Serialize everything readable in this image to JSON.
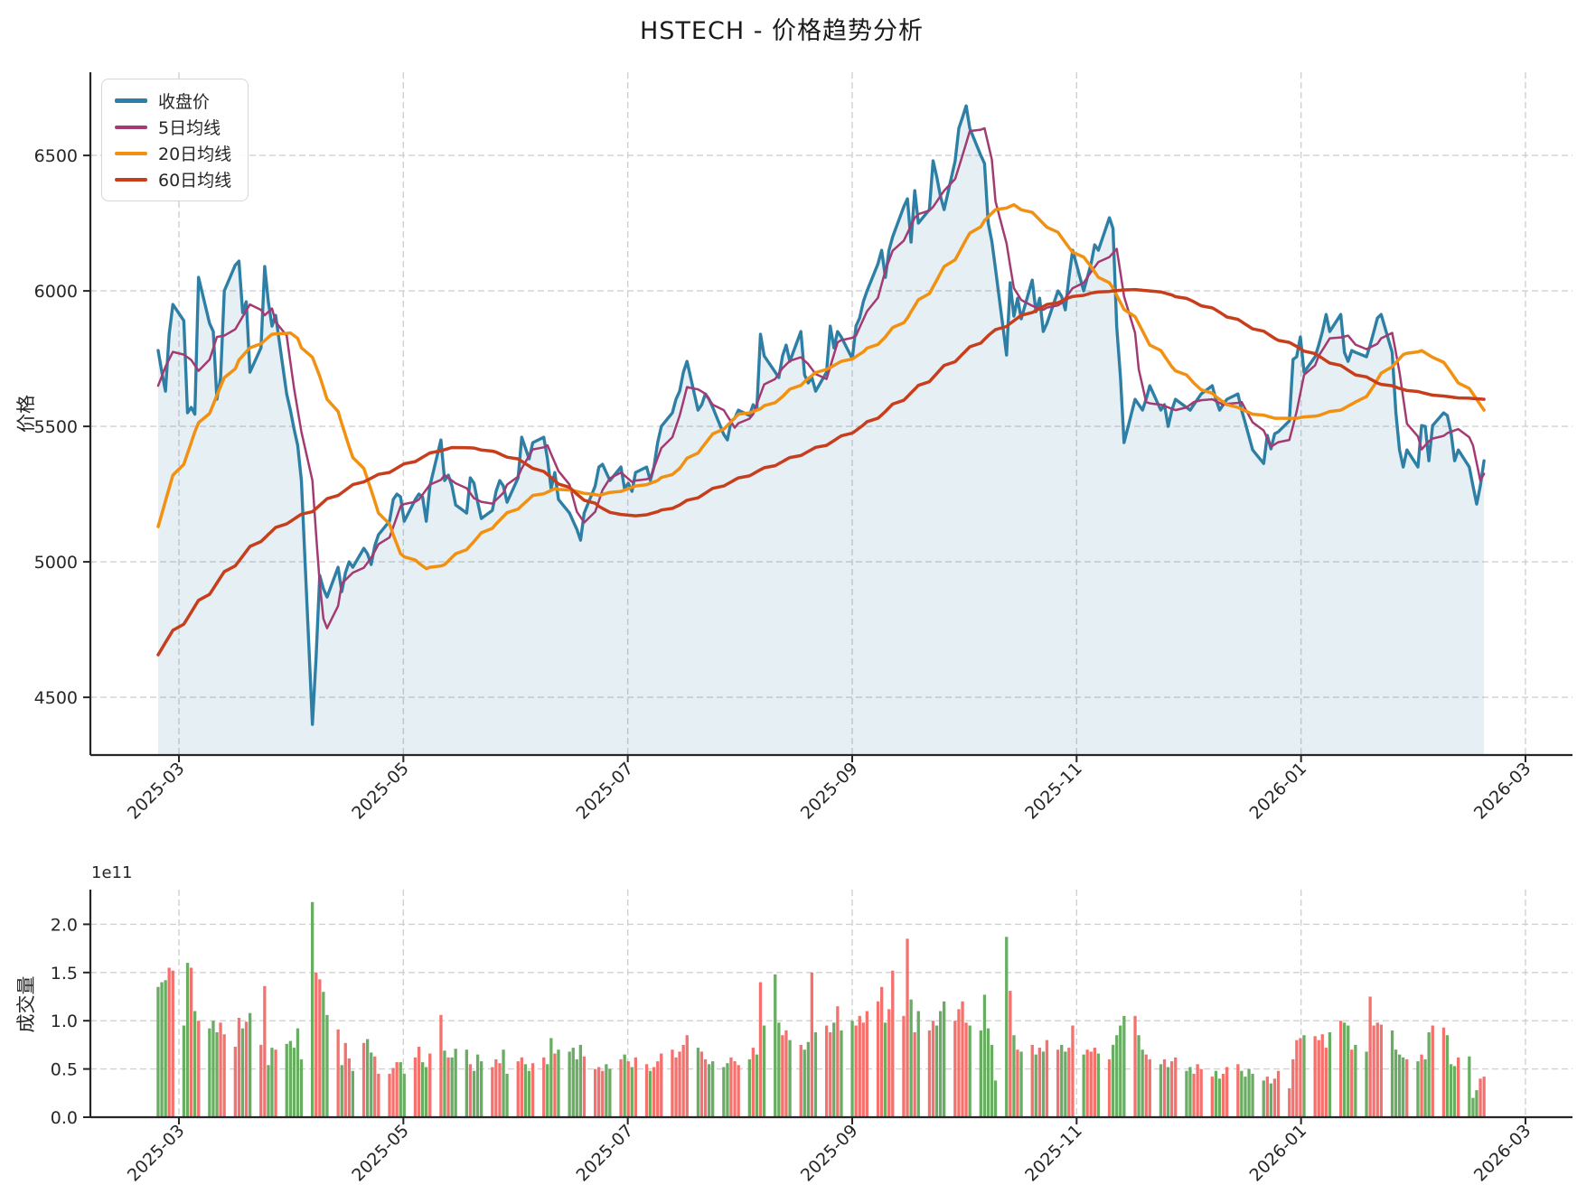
{
  "title": "HSTECH - 价格趋势分析",
  "legend": {
    "items": [
      {
        "label": "收盘价",
        "color": "#2e7fa5",
        "thickness": 5
      },
      {
        "label": "5日均线",
        "color": "#a23b72",
        "thickness": 4
      },
      {
        "label": "20日均线",
        "color": "#f29111",
        "thickness": 4
      },
      {
        "label": "60日均线",
        "color": "#c73e1d",
        "thickness": 4
      }
    ]
  },
  "chart_data": {
    "type": "line+bar",
    "title": "HSTECH - 价格趋势分析",
    "x_axis": {
      "tick_labels": [
        "2025-03",
        "2025-05",
        "2025-07",
        "2025-09",
        "2025-11",
        "2026-01",
        "2026-03"
      ],
      "start_date": "2025-02-24",
      "trading_days": 260
    },
    "price_panel": {
      "ylabel": "价格",
      "ytick_labels": [
        "4500",
        "5000",
        "5500",
        "6000",
        "6500"
      ],
      "ytick_values": [
        4500,
        5000,
        5500,
        6000,
        6500
      ],
      "ylim": [
        4287,
        6807
      ],
      "grid": true,
      "legend_position": "upper-left"
    },
    "volume_panel": {
      "ylabel": "成交量",
      "offset_text": "1e11",
      "ytick_labels": [
        "0.0",
        "0.5",
        "1.0",
        "1.5",
        "2.0"
      ],
      "ytick_values": [
        0,
        50,
        100,
        150,
        200
      ],
      "ylim_1e9": [
        0,
        236
      ],
      "grid": true
    },
    "series_names": {
      "close": "收盘价",
      "ma5": "5日均线",
      "ma20": "20日均线",
      "ma60": "60日均线"
    },
    "colors": {
      "close": "#2e7fa5",
      "close_fill": "#2e7fa5",
      "close_fill_opacity": 0.12,
      "ma5": "#a23b72",
      "ma20": "#f29111",
      "ma60": "#c73e1d",
      "volume_up": "#f4716e",
      "volume_down": "#68ad62",
      "grid": "#cccccc",
      "spine": "#262626",
      "tick_label": "#262626"
    },
    "close": [
      5780,
      5700,
      5630,
      5840,
      5950,
      5890,
      5550,
      5570,
      5545,
      6050,
      5880,
      5850,
      5600,
      5680,
      6000,
      6095,
      6110,
      5920,
      5960,
      5700,
      5790,
      6090,
      5960,
      5870,
      5910,
      5620,
      5560,
      5490,
      5430,
      5300,
      4400,
      4650,
      4950,
      4900,
      4870,
      4980,
      4890,
      4960,
      5000,
      4980,
      5050,
      5030,
      4990,
      5060,
      5100,
      5150,
      5230,
      5250,
      5240,
      5150,
      5230,
      5250,
      5240,
      5150,
      5280,
      5450,
      5300,
      5320,
      5280,
      5210,
      5180,
      5310,
      5290,
      5220,
      5160,
      5190,
      5260,
      5300,
      5280,
      5220,
      5310,
      5460,
      5420,
      5380,
      5440,
      5460,
      5380,
      5270,
      5330,
      5230,
      5180,
      5150,
      5120,
      5080,
      5180,
      5280,
      5350,
      5360,
      5330,
      5300,
      5350,
      5270,
      5290,
      5260,
      5330,
      5350,
      5300,
      5350,
      5440,
      5500,
      5550,
      5600,
      5630,
      5700,
      5740,
      5560,
      5580,
      5620,
      5600,
      5570,
      5470,
      5450,
      5520,
      5530,
      5560,
      5540,
      5580,
      5560,
      5840,
      5760,
      5700,
      5680,
      5760,
      5800,
      5740,
      5850,
      5690,
      5660,
      5680,
      5630,
      5700,
      5870,
      5790,
      5850,
      5830,
      5750,
      5870,
      5900,
      5960,
      6000,
      6100,
      6150,
      6050,
      6150,
      6200,
      6310,
      6340,
      6180,
      6370,
      6250,
      6300,
      6480,
      6420,
      6350,
      6300,
      6480,
      6600,
      6640,
      6683,
      6600,
      6500,
      6470,
      6250,
      6183,
      6080,
      5763,
      6030,
      5907,
      5973,
      5897,
      6040,
      5923,
      5973,
      5850,
      5880,
      6000,
      5980,
      5930,
      6050,
      6150,
      6000,
      6050,
      6100,
      6170,
      6150,
      6270,
      6230,
      5867,
      5683,
      5440,
      5600,
      5580,
      5560,
      5600,
      5650,
      5560,
      5580,
      5500,
      5560,
      5600,
      5570,
      5560,
      5580,
      5600,
      5620,
      5650,
      5600,
      5560,
      5580,
      5600,
      5620,
      5560,
      5513,
      5463,
      5413,
      5363,
      5467,
      5417,
      5473,
      5480,
      5520,
      5747,
      5757,
      5830,
      5700,
      5757,
      5800,
      5850,
      5913,
      5850,
      5913,
      5773,
      5740,
      5780,
      5773,
      5757,
      5800,
      5850,
      5900,
      5913,
      5773,
      5550,
      5413,
      5350,
      5413,
      5350,
      5503,
      5500,
      5373,
      5503,
      5550,
      5540,
      5480,
      5373,
      5413,
      5350,
      5280,
      5213,
      5280,
      5373
    ],
    "ma5_anchors": [
      [
        0,
        5650
      ],
      [
        2,
        5720
      ],
      [
        4,
        5775
      ],
      [
        7,
        5745
      ],
      [
        9,
        5705
      ],
      [
        12,
        5830
      ],
      [
        14,
        5835
      ],
      [
        17,
        5905
      ],
      [
        19,
        5950
      ],
      [
        21,
        5910
      ],
      [
        23,
        5935
      ],
      [
        25,
        5835
      ],
      [
        27,
        5640
      ],
      [
        29,
        5480
      ],
      [
        30,
        5300
      ],
      [
        31,
        5100
      ],
      [
        32,
        4920
      ],
      [
        33,
        4790
      ],
      [
        34,
        4755
      ],
      [
        36,
        4920
      ],
      [
        39,
        4960
      ],
      [
        42,
        5015
      ],
      [
        45,
        5090
      ],
      [
        48,
        5205
      ],
      [
        51,
        5230
      ],
      [
        54,
        5285
      ],
      [
        56,
        5320
      ],
      [
        59,
        5290
      ],
      [
        62,
        5235
      ],
      [
        65,
        5215
      ],
      [
        68,
        5255
      ],
      [
        71,
        5345
      ],
      [
        74,
        5415
      ],
      [
        76,
        5430
      ],
      [
        79,
        5335
      ],
      [
        82,
        5185
      ],
      [
        84,
        5145
      ],
      [
        87,
        5265
      ],
      [
        90,
        5330
      ],
      [
        93,
        5295
      ],
      [
        96,
        5310
      ],
      [
        99,
        5420
      ],
      [
        102,
        5540
      ],
      [
        104,
        5645
      ],
      [
        107,
        5620
      ],
      [
        110,
        5560
      ],
      [
        113,
        5495
      ],
      [
        116,
        5545
      ],
      [
        119,
        5655
      ],
      [
        122,
        5715
      ],
      [
        125,
        5755
      ],
      [
        127,
        5730
      ],
      [
        130,
        5675
      ],
      [
        133,
        5810
      ],
      [
        136,
        5835
      ],
      [
        139,
        5925
      ],
      [
        142,
        6075
      ],
      [
        145,
        6185
      ],
      [
        148,
        6270
      ],
      [
        151,
        6310
      ],
      [
        154,
        6370
      ],
      [
        157,
        6500
      ],
      [
        159,
        6590
      ],
      [
        161,
        6600
      ],
      [
        163,
        6485
      ],
      [
        165,
        6175
      ],
      [
        167,
        6010
      ],
      [
        170,
        5945
      ],
      [
        173,
        5930
      ],
      [
        176,
        5955
      ],
      [
        179,
        6010
      ],
      [
        182,
        6070
      ],
      [
        185,
        6125
      ],
      [
        187,
        6155
      ],
      [
        189,
        5980
      ],
      [
        191,
        5710
      ],
      [
        193,
        5590
      ],
      [
        196,
        5575
      ],
      [
        199,
        5560
      ],
      [
        202,
        5590
      ],
      [
        205,
        5600
      ],
      [
        208,
        5580
      ],
      [
        211,
        5590
      ],
      [
        214,
        5515
      ],
      [
        217,
        5425
      ],
      [
        220,
        5450
      ],
      [
        222,
        5555
      ],
      [
        224,
        5690
      ],
      [
        226,
        5760
      ],
      [
        229,
        5825
      ],
      [
        232,
        5835
      ],
      [
        235,
        5785
      ],
      [
        238,
        5805
      ],
      [
        240,
        5845
      ],
      [
        242,
        5700
      ],
      [
        244,
        5510
      ],
      [
        246,
        5415
      ],
      [
        248,
        5445
      ],
      [
        251,
        5475
      ],
      [
        254,
        5490
      ],
      [
        256,
        5430
      ],
      [
        258,
        5300
      ],
      [
        259,
        5325
      ]
    ],
    "ma20_anchors": [
      [
        0,
        5130
      ],
      [
        4,
        5320
      ],
      [
        8,
        5480
      ],
      [
        12,
        5615
      ],
      [
        16,
        5745
      ],
      [
        20,
        5805
      ],
      [
        23,
        5840
      ],
      [
        26,
        5845
      ],
      [
        28,
        5825
      ],
      [
        30,
        5755
      ],
      [
        32,
        5685
      ],
      [
        34,
        5600
      ],
      [
        36,
        5510
      ],
      [
        38,
        5425
      ],
      [
        40,
        5345
      ],
      [
        42,
        5265
      ],
      [
        44,
        5180
      ],
      [
        46,
        5100
      ],
      [
        48,
        5030
      ],
      [
        51,
        4995
      ],
      [
        53,
        4975
      ],
      [
        56,
        4990
      ],
      [
        59,
        5030
      ],
      [
        62,
        5075
      ],
      [
        66,
        5140
      ],
      [
        70,
        5195
      ],
      [
        74,
        5245
      ],
      [
        78,
        5270
      ],
      [
        82,
        5260
      ],
      [
        86,
        5245
      ],
      [
        90,
        5260
      ],
      [
        94,
        5280
      ],
      [
        98,
        5300
      ],
      [
        102,
        5345
      ],
      [
        106,
        5420
      ],
      [
        110,
        5490
      ],
      [
        114,
        5545
      ],
      [
        118,
        5565
      ],
      [
        122,
        5610
      ],
      [
        126,
        5665
      ],
      [
        130,
        5710
      ],
      [
        134,
        5740
      ],
      [
        138,
        5775
      ],
      [
        142,
        5830
      ],
      [
        146,
        5900
      ],
      [
        150,
        5990
      ],
      [
        154,
        6090
      ],
      [
        158,
        6190
      ],
      [
        161,
        6260
      ],
      [
        164,
        6300
      ],
      [
        167,
        6318
      ],
      [
        170,
        6290
      ],
      [
        174,
        6235
      ],
      [
        178,
        6160
      ],
      [
        182,
        6090
      ],
      [
        186,
        6010
      ],
      [
        190,
        5905
      ],
      [
        194,
        5800
      ],
      [
        198,
        5720
      ],
      [
        202,
        5660
      ],
      [
        206,
        5610
      ],
      [
        210,
        5570
      ],
      [
        214,
        5545
      ],
      [
        218,
        5530
      ],
      [
        222,
        5530
      ],
      [
        226,
        5540
      ],
      [
        230,
        5560
      ],
      [
        234,
        5590
      ],
      [
        237,
        5650
      ],
      [
        240,
        5720
      ],
      [
        243,
        5765
      ],
      [
        246,
        5780
      ],
      [
        249,
        5755
      ],
      [
        252,
        5700
      ],
      [
        255,
        5640
      ],
      [
        257,
        5600
      ],
      [
        259,
        5560
      ]
    ],
    "ma60_anchors": [
      [
        0,
        4657
      ],
      [
        5,
        4770
      ],
      [
        10,
        4880
      ],
      [
        15,
        4985
      ],
      [
        20,
        5075
      ],
      [
        25,
        5140
      ],
      [
        30,
        5185
      ],
      [
        35,
        5245
      ],
      [
        40,
        5295
      ],
      [
        45,
        5330
      ],
      [
        50,
        5370
      ],
      [
        55,
        5410
      ],
      [
        58,
        5422
      ],
      [
        62,
        5420
      ],
      [
        66,
        5405
      ],
      [
        70,
        5380
      ],
      [
        74,
        5345
      ],
      [
        78,
        5300
      ],
      [
        82,
        5250
      ],
      [
        86,
        5205
      ],
      [
        90,
        5175
      ],
      [
        94,
        5170
      ],
      [
        98,
        5185
      ],
      [
        102,
        5210
      ],
      [
        106,
        5245
      ],
      [
        110,
        5280
      ],
      [
        114,
        5310
      ],
      [
        118,
        5340
      ],
      [
        122,
        5370
      ],
      [
        126,
        5400
      ],
      [
        130,
        5430
      ],
      [
        134,
        5465
      ],
      [
        138,
        5505
      ],
      [
        142,
        5555
      ],
      [
        146,
        5610
      ],
      [
        150,
        5665
      ],
      [
        154,
        5725
      ],
      [
        158,
        5780
      ],
      [
        162,
        5835
      ],
      [
        166,
        5880
      ],
      [
        170,
        5920
      ],
      [
        174,
        5950
      ],
      [
        178,
        5975
      ],
      [
        182,
        5992
      ],
      [
        186,
        6000
      ],
      [
        190,
        6005
      ],
      [
        194,
        6000
      ],
      [
        198,
        5985
      ],
      [
        202,
        5960
      ],
      [
        206,
        5930
      ],
      [
        210,
        5895
      ],
      [
        214,
        5860
      ],
      [
        218,
        5825
      ],
      [
        222,
        5795
      ],
      [
        226,
        5760
      ],
      [
        230,
        5725
      ],
      [
        234,
        5690
      ],
      [
        238,
        5660
      ],
      [
        242,
        5640
      ],
      [
        246,
        5625
      ],
      [
        250,
        5612
      ],
      [
        254,
        5605
      ],
      [
        259,
        5600
      ]
    ],
    "volume_1e9": [
      135,
      140,
      142,
      155,
      152,
      95,
      160,
      155,
      110,
      100,
      92,
      100,
      88,
      98,
      86,
      73,
      103,
      92,
      99,
      108,
      75,
      136,
      54,
      72,
      70,
      76,
      79,
      72,
      92,
      60,
      223,
      150,
      143,
      130,
      106,
      91,
      54,
      77,
      61,
      48,
      77,
      81,
      67,
      63,
      45,
      45,
      51,
      57,
      57,
      45,
      62,
      73,
      57,
      52,
      66,
      106,
      69,
      62,
      62,
      71,
      70,
      55,
      48,
      65,
      58,
      52,
      60,
      56,
      70,
      45,
      58,
      62,
      55,
      48,
      56,
      62,
      55,
      82,
      66,
      70,
      68,
      72,
      60,
      75,
      63,
      50,
      52,
      48,
      55,
      50,
      60,
      65,
      58,
      52,
      62,
      55,
      48,
      52,
      58,
      66,
      70,
      62,
      68,
      75,
      85,
      72,
      68,
      60,
      55,
      58,
      52,
      56,
      62,
      58,
      54,
      60,
      72,
      65,
      140,
      95,
      148,
      98,
      85,
      90,
      80,
      75,
      70,
      78,
      150,
      88,
      95,
      88,
      98,
      115,
      90,
      100,
      95,
      105,
      98,
      110,
      120,
      135,
      98,
      112,
      152,
      105,
      185,
      122,
      88,
      110,
      90,
      100,
      95,
      110,
      120,
      100,
      112,
      120,
      98,
      95,
      90,
      127,
      92,
      75,
      38,
      187,
      131,
      85,
      70,
      68,
      75,
      65,
      72,
      68,
      80,
      70,
      75,
      68,
      72,
      95,
      65,
      70,
      68,
      72,
      66,
      60,
      75,
      85,
      95,
      105,
      105,
      85,
      70,
      65,
      60,
      55,
      60,
      52,
      58,
      62,
      48,
      52,
      45,
      55,
      50,
      42,
      48,
      40,
      45,
      52,
      55,
      48,
      42,
      50,
      45,
      38,
      42,
      35,
      40,
      48,
      30,
      60,
      80,
      82,
      85,
      84,
      80,
      86,
      72,
      88,
      100,
      98,
      95,
      70,
      75,
      68,
      125,
      95,
      98,
      96,
      90,
      70,
      65,
      62,
      60,
      58,
      65,
      60,
      88,
      95,
      93,
      85,
      55,
      53,
      62,
      63,
      20,
      28,
      40,
      42
    ]
  }
}
